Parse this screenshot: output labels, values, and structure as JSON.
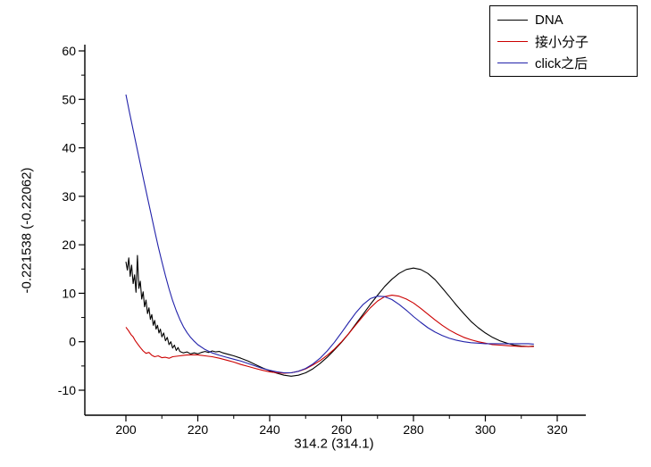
{
  "figure": {
    "background": "#ffffff",
    "axis_color": "#000000"
  },
  "chart_data": {
    "type": "line",
    "title": "",
    "xlabel": "314.2 (314.1)",
    "ylabel": "-0.221538 (-0.22062)",
    "xlim": [
      188,
      328
    ],
    "ylim": [
      -15,
      62
    ],
    "x_ticks": [
      200,
      220,
      240,
      260,
      280,
      300,
      320
    ],
    "x_minor_ticks": [
      210,
      230,
      250,
      270,
      290,
      310
    ],
    "y_ticks": [
      -10,
      0,
      10,
      20,
      30,
      40,
      50,
      60
    ],
    "y_minor_ticks": [
      -5,
      5,
      15,
      25,
      35,
      45,
      55
    ],
    "grid": false,
    "legend_position": "top-right",
    "series": [
      {
        "name": "DNA",
        "color": "#000000",
        "points": [
          [
            200,
            16.5
          ],
          [
            200.4,
            14.8
          ],
          [
            200.8,
            17.3
          ],
          [
            201.2,
            13.5
          ],
          [
            201.6,
            15.8
          ],
          [
            202,
            12
          ],
          [
            202.4,
            13.8
          ],
          [
            202.8,
            10.2
          ],
          [
            203.2,
            17.8
          ],
          [
            203.6,
            11
          ],
          [
            204,
            12.5
          ],
          [
            204.4,
            8.8
          ],
          [
            204.8,
            10.3
          ],
          [
            205.2,
            7.2
          ],
          [
            205.6,
            8.6
          ],
          [
            206,
            5.8
          ],
          [
            206.4,
            7
          ],
          [
            206.8,
            4.6
          ],
          [
            207.2,
            5.6
          ],
          [
            207.6,
            3.4
          ],
          [
            208,
            4.4
          ],
          [
            208.4,
            2.6
          ],
          [
            208.8,
            3.4
          ],
          [
            209.2,
            1.8
          ],
          [
            209.6,
            2.6
          ],
          [
            210,
            1
          ],
          [
            210.5,
            1.8
          ],
          [
            211,
            0.2
          ],
          [
            211.5,
            0.9
          ],
          [
            212,
            -0.6
          ],
          [
            212.5,
            0
          ],
          [
            213,
            -1.3
          ],
          [
            213.5,
            -0.7
          ],
          [
            214,
            -1.8
          ],
          [
            214.5,
            -1.2
          ],
          [
            215,
            -2
          ],
          [
            216,
            -2.3
          ],
          [
            217,
            -2.1
          ],
          [
            218,
            -2.5
          ],
          [
            219,
            -2.3
          ],
          [
            220,
            -2.5
          ],
          [
            221,
            -2.2
          ],
          [
            222,
            -2.0
          ],
          [
            223,
            -2.2
          ],
          [
            224,
            -1.9
          ],
          [
            225,
            -2.1
          ],
          [
            226,
            -2.0
          ],
          [
            227,
            -2.3
          ],
          [
            228,
            -2.5
          ],
          [
            230,
            -2.9
          ],
          [
            232,
            -3.4
          ],
          [
            234,
            -4.0
          ],
          [
            236,
            -4.7
          ],
          [
            238,
            -5.4
          ],
          [
            240,
            -6.0
          ],
          [
            242,
            -6.5
          ],
          [
            244,
            -6.9
          ],
          [
            246,
            -7.1
          ],
          [
            248,
            -6.9
          ],
          [
            250,
            -6.4
          ],
          [
            252,
            -5.6
          ],
          [
            254,
            -4.5
          ],
          [
            256,
            -3.2
          ],
          [
            258,
            -1.7
          ],
          [
            260,
            -0.1
          ],
          [
            262,
            1.7
          ],
          [
            264,
            3.7
          ],
          [
            266,
            5.7
          ],
          [
            268,
            7.7
          ],
          [
            270,
            9.6
          ],
          [
            272,
            11.4
          ],
          [
            274,
            12.9
          ],
          [
            276,
            14.1
          ],
          [
            278,
            14.9
          ],
          [
            280,
            15.2
          ],
          [
            282,
            14.9
          ],
          [
            284,
            14.1
          ],
          [
            286,
            12.8
          ],
          [
            288,
            11.1
          ],
          [
            290,
            9.3
          ],
          [
            292,
            7.5
          ],
          [
            294,
            5.8
          ],
          [
            296,
            4.2
          ],
          [
            298,
            2.9
          ],
          [
            300,
            1.8
          ],
          [
            302,
            0.9
          ],
          [
            304,
            0.2
          ],
          [
            306,
            -0.3
          ],
          [
            308,
            -0.7
          ],
          [
            310,
            -0.9
          ],
          [
            312,
            -1.0
          ],
          [
            313.5,
            -0.9
          ]
        ]
      },
      {
        "name": "接小分子",
        "color": "#cc0000",
        "points": [
          [
            200,
            3
          ],
          [
            200.7,
            2.3
          ],
          [
            201.4,
            1.5
          ],
          [
            202,
            1.0
          ],
          [
            202.6,
            0.2
          ],
          [
            203.2,
            -0.4
          ],
          [
            204,
            -1.2
          ],
          [
            204.8,
            -1.9
          ],
          [
            205.6,
            -2.4
          ],
          [
            206.4,
            -2.2
          ],
          [
            207.2,
            -2.8
          ],
          [
            208,
            -3.1
          ],
          [
            209,
            -2.9
          ],
          [
            210,
            -3.3
          ],
          [
            211,
            -3.2
          ],
          [
            212,
            -3.4
          ],
          [
            213,
            -3.1
          ],
          [
            214,
            -3.0
          ],
          [
            215,
            -2.9
          ],
          [
            216,
            -2.8
          ],
          [
            217,
            -2.75
          ],
          [
            218,
            -2.7
          ],
          [
            220,
            -2.7
          ],
          [
            222,
            -2.9
          ],
          [
            224,
            -3.1
          ],
          [
            226,
            -3.4
          ],
          [
            228,
            -3.8
          ],
          [
            230,
            -4.2
          ],
          [
            232,
            -4.7
          ],
          [
            234,
            -5.1
          ],
          [
            236,
            -5.5
          ],
          [
            238,
            -5.9
          ],
          [
            240,
            -6.2
          ],
          [
            242,
            -6.4
          ],
          [
            244,
            -6.5
          ],
          [
            246,
            -6.4
          ],
          [
            248,
            -6.1
          ],
          [
            250,
            -5.6
          ],
          [
            252,
            -4.8
          ],
          [
            254,
            -3.9
          ],
          [
            256,
            -2.8
          ],
          [
            258,
            -1.5
          ],
          [
            260,
            0
          ],
          [
            262,
            1.7
          ],
          [
            264,
            3.5
          ],
          [
            266,
            5.3
          ],
          [
            268,
            7.0
          ],
          [
            270,
            8.4
          ],
          [
            272,
            9.3
          ],
          [
            274,
            9.6
          ],
          [
            276,
            9.4
          ],
          [
            278,
            8.8
          ],
          [
            280,
            8.0
          ],
          [
            282,
            6.9
          ],
          [
            284,
            5.7
          ],
          [
            286,
            4.5
          ],
          [
            288,
            3.4
          ],
          [
            290,
            2.4
          ],
          [
            292,
            1.6
          ],
          [
            294,
            0.9
          ],
          [
            296,
            0.4
          ],
          [
            298,
            0
          ],
          [
            300,
            -0.3
          ],
          [
            302,
            -0.6
          ],
          [
            304,
            -0.7
          ],
          [
            306,
            -0.8
          ],
          [
            308,
            -0.9
          ],
          [
            310,
            -1.0
          ],
          [
            312,
            -1.0
          ],
          [
            313.5,
            -1.0
          ]
        ]
      },
      {
        "name": "click之后",
        "color": "#2222aa",
        "points": [
          [
            200,
            51
          ],
          [
            201,
            47.3
          ],
          [
            202,
            43.7
          ],
          [
            203,
            40.2
          ],
          [
            204,
            36.7
          ],
          [
            205,
            33.2
          ],
          [
            206,
            29.7
          ],
          [
            207,
            26.3
          ],
          [
            208,
            22.9
          ],
          [
            209,
            19.6
          ],
          [
            210,
            16.5
          ],
          [
            211,
            13.6
          ],
          [
            212,
            10.9
          ],
          [
            213,
            8.5
          ],
          [
            214,
            6.4
          ],
          [
            215,
            4.6
          ],
          [
            216,
            3.1
          ],
          [
            217,
            1.9
          ],
          [
            218,
            0.9
          ],
          [
            219,
            0.1
          ],
          [
            220,
            -0.6
          ],
          [
            222,
            -1.6
          ],
          [
            224,
            -2.3
          ],
          [
            226,
            -2.8
          ],
          [
            228,
            -3.2
          ],
          [
            230,
            -3.6
          ],
          [
            232,
            -4.0
          ],
          [
            234,
            -4.5
          ],
          [
            236,
            -5.0
          ],
          [
            238,
            -5.5
          ],
          [
            240,
            -5.9
          ],
          [
            242,
            -6.2
          ],
          [
            244,
            -6.4
          ],
          [
            246,
            -6.4
          ],
          [
            248,
            -6.1
          ],
          [
            250,
            -5.5
          ],
          [
            252,
            -4.6
          ],
          [
            254,
            -3.4
          ],
          [
            256,
            -1.9
          ],
          [
            258,
            -0.1
          ],
          [
            260,
            1.9
          ],
          [
            262,
            4.0
          ],
          [
            264,
            6.0
          ],
          [
            266,
            7.7
          ],
          [
            268,
            8.9
          ],
          [
            270,
            9.4
          ],
          [
            272,
            9.3
          ],
          [
            274,
            8.7
          ],
          [
            276,
            7.7
          ],
          [
            278,
            6.5
          ],
          [
            280,
            5.2
          ],
          [
            282,
            4.0
          ],
          [
            284,
            2.9
          ],
          [
            286,
            2.0
          ],
          [
            288,
            1.3
          ],
          [
            290,
            0.7
          ],
          [
            292,
            0.3
          ],
          [
            294,
            0.0
          ],
          [
            296,
            -0.2
          ],
          [
            298,
            -0.3
          ],
          [
            300,
            -0.4
          ],
          [
            302,
            -0.4
          ],
          [
            304,
            -0.4
          ],
          [
            306,
            -0.4
          ],
          [
            308,
            -0.4
          ],
          [
            310,
            -0.4
          ],
          [
            312,
            -0.4
          ],
          [
            313.5,
            -0.5
          ]
        ]
      }
    ]
  }
}
